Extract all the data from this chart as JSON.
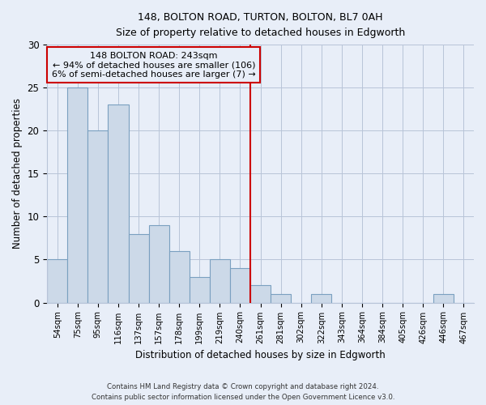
{
  "title": "148, BOLTON ROAD, TURTON, BOLTON, BL7 0AH",
  "subtitle": "Size of property relative to detached houses in Edgworth",
  "xlabel": "Distribution of detached houses by size in Edgworth",
  "ylabel": "Number of detached properties",
  "bar_labels": [
    "54sqm",
    "75sqm",
    "95sqm",
    "116sqm",
    "137sqm",
    "157sqm",
    "178sqm",
    "199sqm",
    "219sqm",
    "240sqm",
    "261sqm",
    "281sqm",
    "302sqm",
    "322sqm",
    "343sqm",
    "364sqm",
    "384sqm",
    "405sqm",
    "426sqm",
    "446sqm",
    "467sqm"
  ],
  "bar_values": [
    5,
    25,
    20,
    23,
    8,
    9,
    6,
    3,
    5,
    4,
    2,
    1,
    0,
    1,
    0,
    0,
    0,
    0,
    0,
    1,
    0
  ],
  "bar_color": "#ccd9e8",
  "bar_edge_color": "#7aa0c0",
  "vline_x": 9.5,
  "vline_color": "#cc0000",
  "ylim": [
    0,
    30
  ],
  "yticks": [
    0,
    5,
    10,
    15,
    20,
    25,
    30
  ],
  "annotation_title": "148 BOLTON ROAD: 243sqm",
  "annotation_line1": "← 94% of detached houses are smaller (106)",
  "annotation_line2": "6% of semi-detached houses are larger (7) →",
  "annotation_box_color": "#cc0000",
  "footer_line1": "Contains HM Land Registry data © Crown copyright and database right 2024.",
  "footer_line2": "Contains public sector information licensed under the Open Government Licence v3.0.",
  "background_color": "#e8eef8",
  "grid_color": "#b8c4d8"
}
